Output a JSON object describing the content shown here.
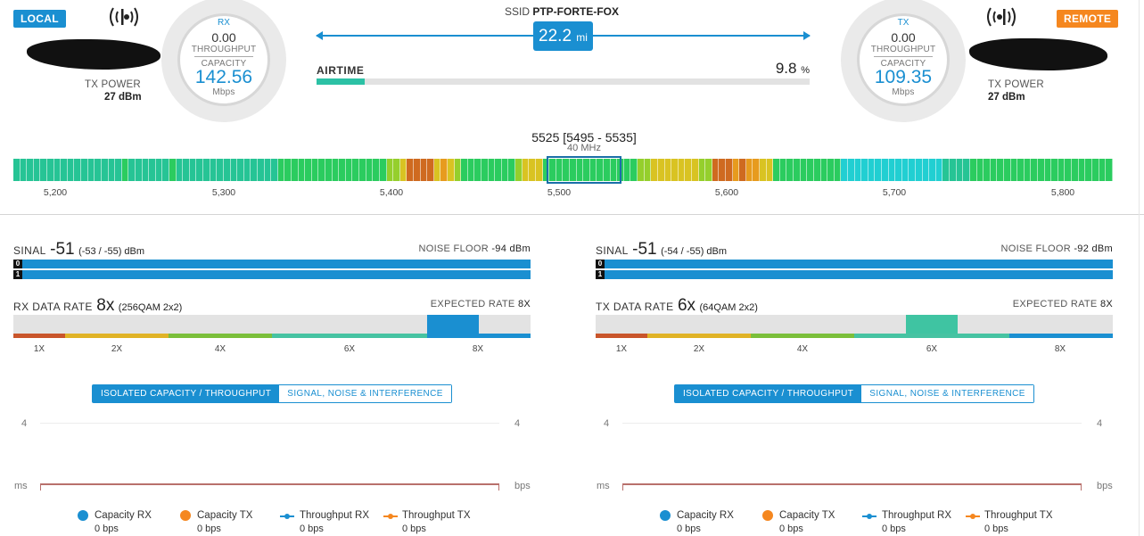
{
  "local": {
    "badge": "LOCAL",
    "tx_power_label": "TX POWER",
    "tx_power_value": "27 dBm"
  },
  "remote": {
    "badge": "REMOTE",
    "tx_power_label": "TX POWER",
    "tx_power_value": "27 dBm"
  },
  "gauge_local": {
    "head": "RX",
    "throughput_value": "0.00",
    "throughput_label": "THROUGHPUT",
    "capacity_label": "CAPACITY",
    "capacity_value": "142.56",
    "unit": "Mbps"
  },
  "gauge_remote": {
    "head": "TX",
    "throughput_value": "0.00",
    "throughput_label": "THROUGHPUT",
    "capacity_label": "CAPACITY",
    "capacity_value": "109.35",
    "unit": "Mbps"
  },
  "link": {
    "ssid_label": "SSID",
    "ssid": "PTP-FORTE-FOX",
    "distance": "22.2",
    "distance_unit": "mi"
  },
  "airtime": {
    "label": "AIRTIME",
    "value": "9.8",
    "unit": "%",
    "fraction": 0.098
  },
  "frequency": {
    "title": "5525 [5495 - 5535]",
    "bandwidth": "40 MHz",
    "ticks": [
      "5,200",
      "5,300",
      "5,400",
      "5,500",
      "5,600",
      "5,700",
      "5,800"
    ],
    "colors": {
      "green": "#2bcc5f",
      "teal": "#26c495",
      "cyan": "#21cfd2",
      "lime": "#95cf2c",
      "yellow": "#d9c322",
      "orange": "#e79b1e",
      "rust": "#cf6a20"
    },
    "bins": [
      "teal",
      "teal",
      "teal",
      "teal",
      "teal",
      "teal",
      "teal",
      "teal",
      "teal",
      "teal",
      "teal",
      "teal",
      "teal",
      "teal",
      "teal",
      "teal",
      "green",
      "teal",
      "teal",
      "teal",
      "teal",
      "teal",
      "teal",
      "green",
      "teal",
      "teal",
      "teal",
      "teal",
      "teal",
      "teal",
      "teal",
      "teal",
      "teal",
      "teal",
      "teal",
      "teal",
      "teal",
      "teal",
      "teal",
      "green",
      "green",
      "green",
      "green",
      "green",
      "green",
      "green",
      "green",
      "green",
      "green",
      "green",
      "green",
      "green",
      "green",
      "green",
      "green",
      "lime",
      "lime",
      "yellow",
      "rust",
      "rust",
      "rust",
      "rust",
      "yellow",
      "orange",
      "yellow",
      "lime",
      "green",
      "green",
      "green",
      "green",
      "green",
      "green",
      "green",
      "green",
      "lime",
      "yellow",
      "yellow",
      "yellow",
      "green",
      "green",
      "green",
      "green",
      "green",
      "green",
      "green",
      "green",
      "green",
      "green",
      "green",
      "green",
      "green",
      "green",
      "lime",
      "lime",
      "yellow",
      "yellow",
      "yellow",
      "yellow",
      "yellow",
      "yellow",
      "yellow",
      "lime",
      "lime",
      "rust",
      "rust",
      "rust",
      "orange",
      "rust",
      "orange",
      "orange",
      "yellow",
      "yellow",
      "green",
      "green",
      "green",
      "green",
      "green",
      "green",
      "green",
      "green",
      "green",
      "green",
      "cyan",
      "cyan",
      "cyan",
      "cyan",
      "cyan",
      "cyan",
      "cyan",
      "cyan",
      "cyan",
      "cyan",
      "cyan",
      "cyan",
      "cyan",
      "cyan",
      "cyan",
      "teal",
      "teal",
      "teal",
      "teal",
      "green",
      "green",
      "green",
      "green",
      "green",
      "green",
      "green",
      "green",
      "green",
      "green",
      "green",
      "green",
      "green",
      "green",
      "green",
      "green",
      "green",
      "green",
      "green",
      "green",
      "green"
    ]
  },
  "panels": [
    {
      "signal_label": "SINAL",
      "signal_value": "-51",
      "signal_sub": "(-53 / -55) dBm",
      "noise_label": "NOISE FLOOR",
      "noise_value": "-94 dBm",
      "chains": [
        "0",
        "1"
      ],
      "rate_label": "RX DATA RATE",
      "rate_value": "8x",
      "rate_sub": "(256QAM 2x2)",
      "expected_label": "EXPECTED RATE",
      "expected_value": "8X",
      "rate_fill_color": "#1a8fd1",
      "rate_fill_from": 0.8,
      "rate_fill_to": 0.9,
      "scale": [
        "1X",
        "2X",
        "4X",
        "6X",
        "8X"
      ],
      "tab_active": "ISOLATED CAPACITY / THROUGHPUT",
      "tab_inactive": "SIGNAL, NOISE & INTERFERENCE",
      "chart": {
        "y_left_max": "4",
        "y_right_max": "4",
        "left_unit": "ms",
        "right_unit": "bps"
      },
      "legend": [
        {
          "label": "Capacity RX",
          "value": "0 bps",
          "icon": "dot",
          "color": "#1a8fd1"
        },
        {
          "label": "Capacity TX",
          "value": "0 bps",
          "icon": "dot",
          "color": "#f5871f"
        },
        {
          "label": "Throughput RX",
          "value": "0 bps",
          "icon": "line-dot",
          "color": "#1a8fd1"
        },
        {
          "label": "Throughput TX",
          "value": "0 bps",
          "icon": "line-dot",
          "color": "#f5871f"
        }
      ]
    },
    {
      "signal_label": "SINAL",
      "signal_value": "-51",
      "signal_sub": "(-54 / -55) dBm",
      "noise_label": "NOISE FLOOR",
      "noise_value": "-92 dBm",
      "chains": [
        "0",
        "1"
      ],
      "rate_label": "TX DATA RATE",
      "rate_value": "6x",
      "rate_sub": "(64QAM 2x2)",
      "expected_label": "EXPECTED RATE",
      "expected_value": "8X",
      "rate_fill_color": "#3fc4a2",
      "rate_fill_from": 0.6,
      "rate_fill_to": 0.7,
      "scale": [
        "1X",
        "2X",
        "4X",
        "6X",
        "8X"
      ],
      "tab_active": "ISOLATED CAPACITY / THROUGHPUT",
      "tab_inactive": "SIGNAL, NOISE & INTERFERENCE",
      "chart": {
        "y_left_max": "4",
        "y_right_max": "4",
        "left_unit": "ms",
        "right_unit": "bps"
      },
      "legend": [
        {
          "label": "Capacity RX",
          "value": "0 bps",
          "icon": "dot",
          "color": "#1a8fd1"
        },
        {
          "label": "Capacity TX",
          "value": "0 bps",
          "icon": "dot",
          "color": "#f5871f"
        },
        {
          "label": "Throughput RX",
          "value": "0 bps",
          "icon": "line-dot",
          "color": "#1a8fd1"
        },
        {
          "label": "Throughput TX",
          "value": "0 bps",
          "icon": "line-dot",
          "color": "#f5871f"
        }
      ]
    }
  ],
  "rate_segment_colors": [
    "#c9552b",
    "#e0b326",
    "#7bbf3a",
    "#46c3a2",
    "#1a8fd1"
  ]
}
